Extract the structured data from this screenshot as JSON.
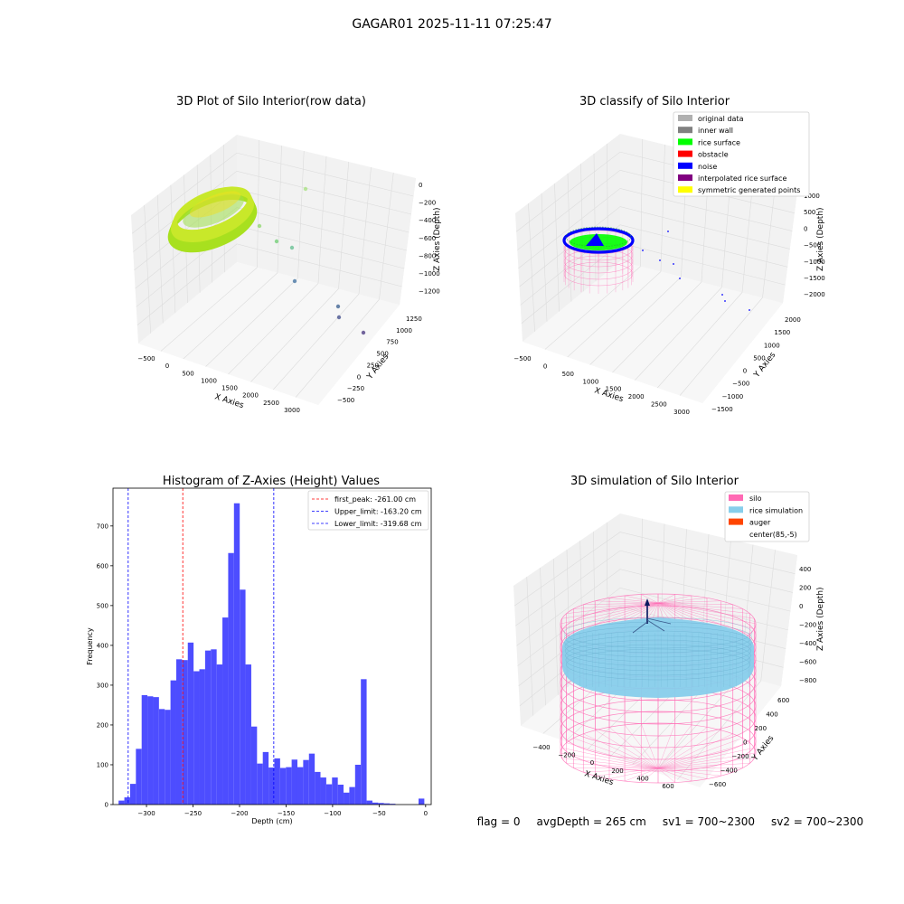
{
  "figure": {
    "suptitle": "GAGAR01 2025-11-11 07:25:47"
  },
  "status": {
    "flag": "flag = 0",
    "avg_depth": "avgDepth = 265 cm",
    "sv1": "sv1 = 700~2300",
    "sv2": "sv2 = 700~2300"
  },
  "colors": {
    "histogram_bar": "#4d4dff",
    "first_peak_line": "#ff0000",
    "limit_lines": "#0000ff",
    "silo_wire": "#ff69b4",
    "rice_surface": "#87ceeb",
    "auger": "#ff4500",
    "noise": "#0000ff",
    "rice": "#00ff00"
  },
  "chart_data": [
    {
      "type": "scatter",
      "projection": "3d",
      "title": "3D Plot of Silo Interior(row data)",
      "xlabel": "X Axies",
      "ylabel": "Y Axies",
      "zlabel": "Z Axies (Depth)",
      "x_ticks": [
        "−500",
        "0",
        "500",
        "1000",
        "1500",
        "2000",
        "2500",
        "3000"
      ],
      "y_ticks": [
        "−500",
        "−250",
        "0",
        "250",
        "500",
        "750",
        "1000",
        "1250"
      ],
      "z_ticks": [
        "0",
        "−200",
        "−400",
        "−600",
        "−800",
        "−1000",
        "−1200"
      ],
      "colormap": "viridis_r",
      "outlier_points": [
        {
          "x": 3000,
          "y": 1250,
          "z": -1200
        },
        {
          "x": 2400,
          "y": 900,
          "z": -1050
        },
        {
          "x": 2300,
          "y": 950,
          "z": -950
        },
        {
          "x": 1300,
          "y": 600,
          "z": -850
        },
        {
          "x": 1200,
          "y": 700,
          "z": -600
        },
        {
          "x": 900,
          "y": 600,
          "z": -500
        },
        {
          "x": 700,
          "y": 500,
          "z": -400
        },
        {
          "x": 2000,
          "y": 1200,
          "z": -100
        }
      ]
    },
    {
      "type": "scatter",
      "projection": "3d",
      "title": "3D classify of Silo Interior",
      "zlabel": "Z Axies (Depth)",
      "xlabel": "X Axies",
      "ylabel": "Y Axies",
      "x_ticks": [
        "−500",
        "0",
        "500",
        "1000",
        "1500",
        "2000",
        "2500",
        "3000"
      ],
      "y_ticks": [
        "−1500",
        "−1000",
        "−500",
        "0",
        "500",
        "1000",
        "1500",
        "2000"
      ],
      "z_ticks": [
        "1000",
        "500",
        "0",
        "−500",
        "−1000",
        "−1500",
        "−2000"
      ],
      "legend": {
        "placement": "top-right",
        "entries": [
          {
            "label": "original data",
            "color": "#b0b0b0"
          },
          {
            "label": "inner wall",
            "color": "#808080"
          },
          {
            "label": "rice surface",
            "color": "#00ff00"
          },
          {
            "label": "obstacle",
            "color": "#ff0000"
          },
          {
            "label": "noise",
            "color": "#0000ff"
          },
          {
            "label": "interpolated rice surface",
            "color": "#800080"
          },
          {
            "label": "symmetric generated points",
            "color": "#ffff00"
          }
        ]
      }
    },
    {
      "type": "bar",
      "title": "Histogram of Z-Axies (Height) Values",
      "xlabel": "Depth (cm)",
      "ylabel": "Frequency",
      "xlim": [
        -336,
        6
      ],
      "ylim": [
        0,
        795
      ],
      "x_ticks": [
        -300,
        -250,
        -200,
        -150,
        -100,
        -50,
        0
      ],
      "y_ticks": [
        0,
        100,
        200,
        300,
        400,
        500,
        600,
        700
      ],
      "x_tick_labels": [
        "−300",
        "−250",
        "−200",
        "−150",
        "−100",
        "−50",
        "0"
      ],
      "bins": {
        "start": -330,
        "width": 6.2,
        "counts": [
          10,
          18,
          52,
          140,
          275,
          272,
          270,
          240,
          238,
          312,
          365,
          363,
          407,
          335,
          340,
          387,
          390,
          352,
          470,
          632,
          757,
          540,
          352,
          196,
          103,
          132,
          93,
          116,
          92,
          94,
          113,
          94,
          112,
          128,
          82,
          68,
          51,
          68,
          50,
          30,
          44,
          100,
          315,
          10,
          5,
          4,
          3,
          2,
          0,
          0,
          0,
          0,
          15
        ]
      },
      "vlines": [
        {
          "x": -261.0,
          "label": "first_peak: -261.00 cm",
          "color": "#ff0000"
        },
        {
          "x": -163.2,
          "label": "Upper_limit: -163.20 cm",
          "color": "#0000ff"
        },
        {
          "x": -319.68,
          "label": "Lower_limit: -319.68 cm",
          "color": "#0000ff"
        }
      ],
      "legend": {
        "placement": "top-right"
      }
    },
    {
      "type": "surface",
      "projection": "3d",
      "title": "3D simulation of Silo Interior",
      "xlabel": "X Axies",
      "ylabel": "Y Axies",
      "zlabel": "Z Axies (Depth)",
      "x_ticks": [
        "−400",
        "−200",
        "0",
        "200",
        "400",
        "600"
      ],
      "y_ticks": [
        "−600",
        "−400",
        "−200",
        "0",
        "200",
        "400",
        "600"
      ],
      "z_ticks": [
        "400",
        "200",
        "0",
        "−200",
        "−400",
        "−600",
        "−800"
      ],
      "legend": {
        "placement": "top-right",
        "entries": [
          {
            "label": "silo",
            "color": "#ff69b4"
          },
          {
            "label": "rice simulation",
            "color": "#87ceeb"
          },
          {
            "label": "auger",
            "color": "#ff4500"
          },
          {
            "label": "center(85,-5)",
            "color": "#ffffff"
          }
        ]
      }
    }
  ]
}
